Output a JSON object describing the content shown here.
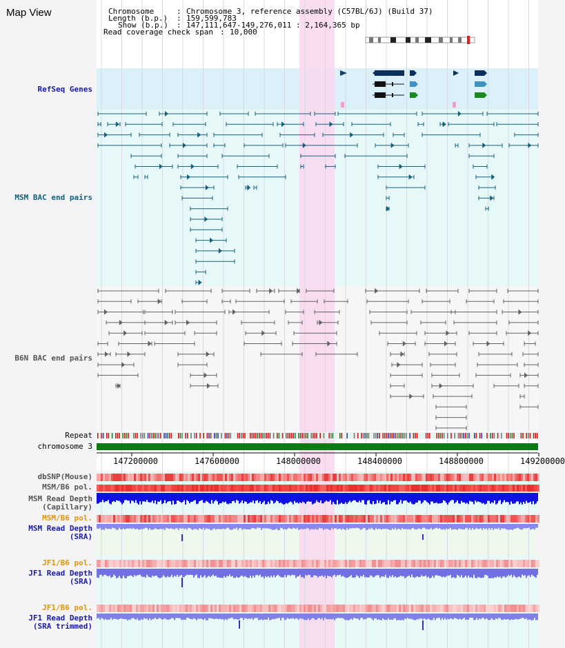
{
  "title": "Map View",
  "header": {
    "chromosome_key": "Chromosome",
    "chromosome_val": "Chromosome 3, reference assembly (C57BL/6J) (Build 37)",
    "length_key": "Length (b.p.)",
    "length_val": "159,599,783",
    "show_key": "Show (b.p.)",
    "show_val": "147,111,647-149,276,011 : 2,164,365 bp",
    "coverage_key": "Read coverage check span",
    "coverage_val": "10,000"
  },
  "tracks": {
    "refseq": "RefSeq Genes",
    "msm_bac": "MSM BAC end pairs",
    "b6n_bac": "B6N BAC end pairs",
    "repeat": "Repeat",
    "chromosome": "chromosome 3",
    "dbsnp": "dbSNP(Mouse)",
    "msm_b6_pol": "MSM/B6 pol.",
    "msm_depth_cap_1": "MSM Read Depth",
    "msm_depth_cap_2": "(Capillary)",
    "msm_b6_pol_2": "MSM/B6 pol.",
    "msm_depth_sra_1": "MSM Read Depth",
    "msm_depth_sra_2": "(SRA)",
    "jf1_b6_pol": "JF1/B6 pol.",
    "jf1_depth_sra_1": "JF1 Read Depth",
    "jf1_depth_sra_2": "(SRA)",
    "jf1_b6_pol_2": "JF1/B6 pol.",
    "jf1_depth_trim_1": "JF1 Read Depth",
    "jf1_depth_trim_2": "(SRA trimmed)"
  },
  "axis": {
    "ticks": [
      "147200000",
      "147600000",
      "148000000",
      "148400000",
      "148800000",
      "149200000"
    ]
  },
  "colors": {
    "highlight": "#f8d8f0",
    "refseq_bg": "#dcf0fa",
    "msm_bg": "#e6f8f8",
    "chromosome_bar": "#0a7a14",
    "msm_feature": "#16607a",
    "b6n_feature": "#606060"
  }
}
